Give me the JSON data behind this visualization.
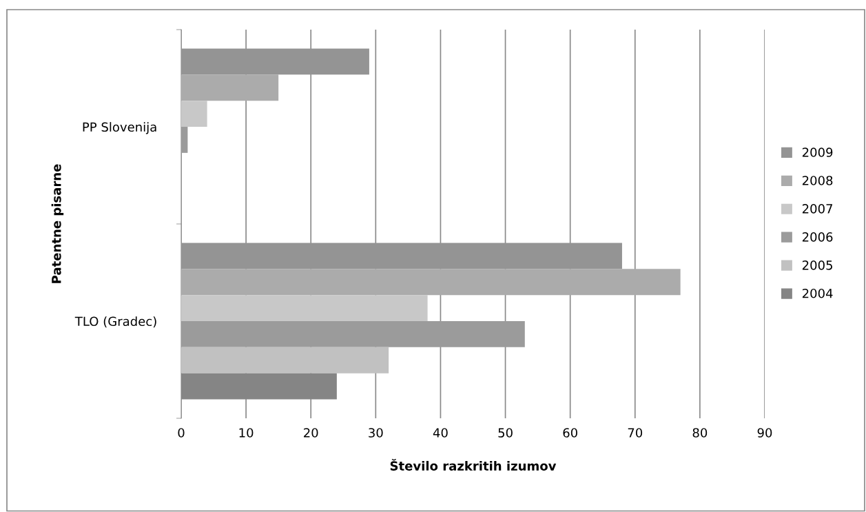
{
  "chart_data": {
    "type": "bar",
    "orientation": "horizontal",
    "categories": [
      "PP Slovenija",
      "TLO (Gradec)"
    ],
    "xlabel": "Število razkritih izumov",
    "ylabel": "Patentne pisarne",
    "xlim": [
      0,
      90
    ],
    "xticks": [
      0,
      10,
      20,
      30,
      40,
      50,
      60,
      70,
      80,
      90
    ],
    "grid": "x",
    "legend": "right",
    "series": [
      {
        "name": "2009",
        "color": "#949494",
        "values": [
          29,
          68
        ]
      },
      {
        "name": "2008",
        "color": "#ababab",
        "values": [
          15,
          77
        ]
      },
      {
        "name": "2007",
        "color": "#c8c8c8",
        "values": [
          4,
          38
        ]
      },
      {
        "name": "2006",
        "color": "#9b9b9b",
        "values": [
          1,
          53
        ]
      },
      {
        "name": "2005",
        "color": "#c1c1c1",
        "values": [
          0,
          32
        ]
      },
      {
        "name": "2004",
        "color": "#858585",
        "values": [
          0,
          24
        ]
      }
    ]
  }
}
